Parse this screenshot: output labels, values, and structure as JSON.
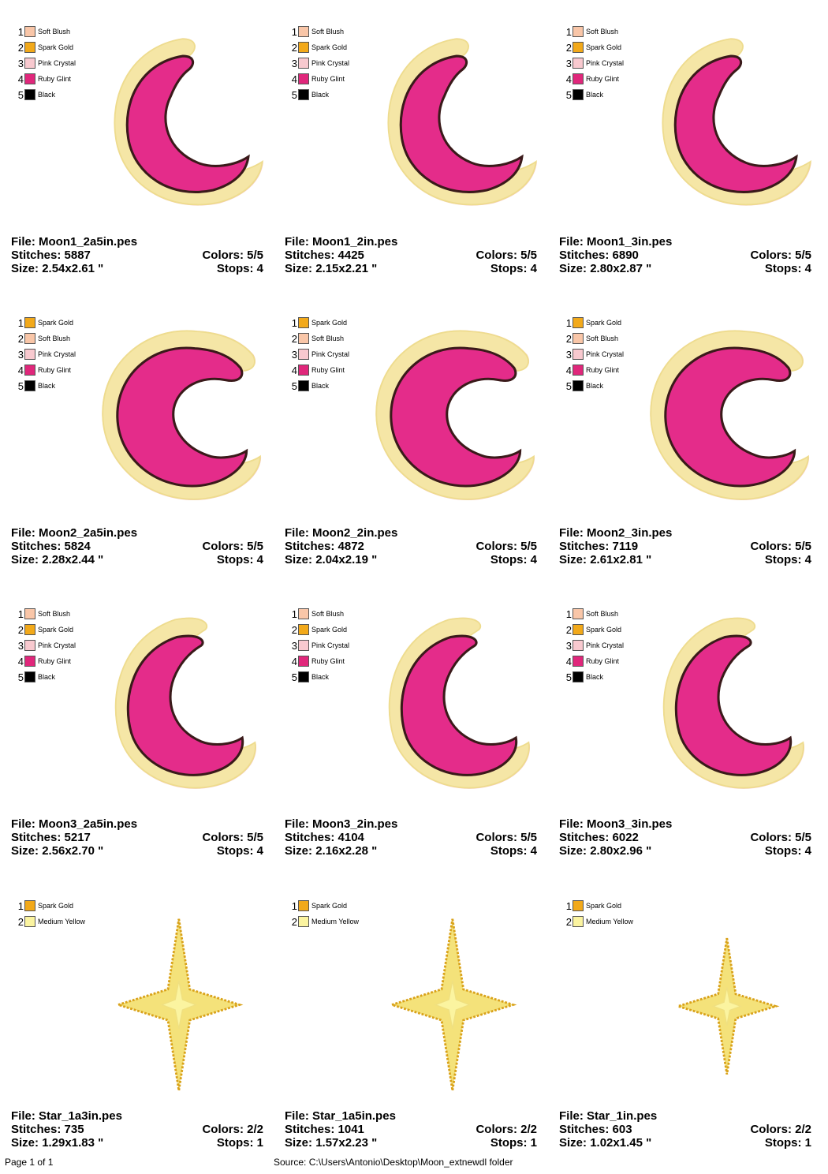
{
  "colors": {
    "soft_blush": "#F9C6A8",
    "spark_gold": "#F2A91A",
    "pink_crystal": "#F8C9CF",
    "ruby_glint": "#E0277B",
    "black": "#000000",
    "medium_yellow": "#FBF4A0",
    "fill_pink": "#E42C8A",
    "outline": "#3A1A1A",
    "border_cream": "#F5E6A6",
    "star_fill": "#F4E27A",
    "star_edge": "#D9A21A"
  },
  "labels": {
    "file": "File:",
    "stitches": "Stitches:",
    "size": "Size:",
    "colors": "Colors:",
    "stops": "Stops:"
  },
  "designs": [
    {
      "file": "Moon1_2a5in.pes",
      "stitches": "5887",
      "size": "2.54x2.61 \"",
      "colors": "5/5",
      "stops": "4",
      "shape": "moon1",
      "palette": [
        {
          "n": "1",
          "name": "Soft Blush",
          "color": "#F9C6A8"
        },
        {
          "n": "2",
          "name": "Spark Gold",
          "color": "#F2A91A"
        },
        {
          "n": "3",
          "name": "Pink Crystal",
          "color": "#F8C9CF"
        },
        {
          "n": "4",
          "name": "Ruby Glint",
          "color": "#E0277B"
        },
        {
          "n": "5",
          "name": "Black",
          "color": "#000000"
        }
      ]
    },
    {
      "file": "Moon1_2in.pes",
      "stitches": "4425",
      "size": "2.15x2.21 \"",
      "colors": "5/5",
      "stops": "4",
      "shape": "moon1",
      "palette": [
        {
          "n": "1",
          "name": "Soft Blush",
          "color": "#F9C6A8"
        },
        {
          "n": "2",
          "name": "Spark Gold",
          "color": "#F2A91A"
        },
        {
          "n": "3",
          "name": "Pink Crystal",
          "color": "#F8C9CF"
        },
        {
          "n": "4",
          "name": "Ruby Glint",
          "color": "#E0277B"
        },
        {
          "n": "5",
          "name": "Black",
          "color": "#000000"
        }
      ]
    },
    {
      "file": "Moon1_3in.pes",
      "stitches": "6890",
      "size": "2.80x2.87 \"",
      "colors": "5/5",
      "stops": "4",
      "shape": "moon1",
      "palette": [
        {
          "n": "1",
          "name": "Soft Blush",
          "color": "#F9C6A8"
        },
        {
          "n": "2",
          "name": "Spark Gold",
          "color": "#F2A91A"
        },
        {
          "n": "3",
          "name": "Pink Crystal",
          "color": "#F8C9CF"
        },
        {
          "n": "4",
          "name": "Ruby Glint",
          "color": "#E0277B"
        },
        {
          "n": "5",
          "name": "Black",
          "color": "#000000"
        }
      ]
    },
    {
      "file": "Moon2_2a5in.pes",
      "stitches": "5824",
      "size": "2.28x2.44 \"",
      "colors": "5/5",
      "stops": "4",
      "shape": "moon2",
      "palette": [
        {
          "n": "1",
          "name": "Spark Gold",
          "color": "#F2A91A"
        },
        {
          "n": "2",
          "name": "Soft Blush",
          "color": "#F9C6A8"
        },
        {
          "n": "3",
          "name": "Pink Crystal",
          "color": "#F8C9CF"
        },
        {
          "n": "4",
          "name": "Ruby Glint",
          "color": "#E0277B"
        },
        {
          "n": "5",
          "name": "Black",
          "color": "#000000"
        }
      ]
    },
    {
      "file": "Moon2_2in.pes",
      "stitches": "4872",
      "size": "2.04x2.19 \"",
      "colors": "5/5",
      "stops": "4",
      "shape": "moon2",
      "palette": [
        {
          "n": "1",
          "name": "Spark Gold",
          "color": "#F2A91A"
        },
        {
          "n": "2",
          "name": "Soft Blush",
          "color": "#F9C6A8"
        },
        {
          "n": "3",
          "name": "Pink Crystal",
          "color": "#F8C9CF"
        },
        {
          "n": "4",
          "name": "Ruby Glint",
          "color": "#E0277B"
        },
        {
          "n": "5",
          "name": "Black",
          "color": "#000000"
        }
      ]
    },
    {
      "file": "Moon2_3in.pes",
      "stitches": "7119",
      "size": "2.61x2.81 \"",
      "colors": "5/5",
      "stops": "4",
      "shape": "moon2",
      "palette": [
        {
          "n": "1",
          "name": "Spark Gold",
          "color": "#F2A91A"
        },
        {
          "n": "2",
          "name": "Soft Blush",
          "color": "#F9C6A8"
        },
        {
          "n": "3",
          "name": "Pink Crystal",
          "color": "#F8C9CF"
        },
        {
          "n": "4",
          "name": "Ruby Glint",
          "color": "#E0277B"
        },
        {
          "n": "5",
          "name": "Black",
          "color": "#000000"
        }
      ]
    },
    {
      "file": "Moon3_2a5in.pes",
      "stitches": "5217",
      "size": "2.56x2.70 \"",
      "colors": "5/5",
      "stops": "4",
      "shape": "moon3",
      "palette": [
        {
          "n": "1",
          "name": "Soft Blush",
          "color": "#F9C6A8"
        },
        {
          "n": "2",
          "name": "Spark Gold",
          "color": "#F2A91A"
        },
        {
          "n": "3",
          "name": "Pink Crystal",
          "color": "#F8C9CF"
        },
        {
          "n": "4",
          "name": "Ruby Glint",
          "color": "#E0277B"
        },
        {
          "n": "5",
          "name": "Black",
          "color": "#000000"
        }
      ]
    },
    {
      "file": "Moon3_2in.pes",
      "stitches": "4104",
      "size": "2.16x2.28 \"",
      "colors": "5/5",
      "stops": "4",
      "shape": "moon3",
      "palette": [
        {
          "n": "1",
          "name": "Soft Blush",
          "color": "#F9C6A8"
        },
        {
          "n": "2",
          "name": "Spark Gold",
          "color": "#F2A91A"
        },
        {
          "n": "3",
          "name": "Pink Crystal",
          "color": "#F8C9CF"
        },
        {
          "n": "4",
          "name": "Ruby Glint",
          "color": "#E0277B"
        },
        {
          "n": "5",
          "name": "Black",
          "color": "#000000"
        }
      ]
    },
    {
      "file": "Moon3_3in.pes",
      "stitches": "6022",
      "size": "2.80x2.96 \"",
      "colors": "5/5",
      "stops": "4",
      "shape": "moon3",
      "palette": [
        {
          "n": "1",
          "name": "Soft Blush",
          "color": "#F9C6A8"
        },
        {
          "n": "2",
          "name": "Spark Gold",
          "color": "#F2A91A"
        },
        {
          "n": "3",
          "name": "Pink Crystal",
          "color": "#F8C9CF"
        },
        {
          "n": "4",
          "name": "Ruby Glint",
          "color": "#E0277B"
        },
        {
          "n": "5",
          "name": "Black",
          "color": "#000000"
        }
      ]
    },
    {
      "file": "Star_1a3in.pes",
      "stitches": "735",
      "size": "1.29x1.83 \"",
      "colors": "2/2",
      "stops": "1",
      "shape": "star-lg",
      "palette": [
        {
          "n": "1",
          "name": "Spark Gold",
          "color": "#F2A91A"
        },
        {
          "n": "2",
          "name": "Medium Yellow",
          "color": "#FBF4A0"
        }
      ]
    },
    {
      "file": "Star_1a5in.pes",
      "stitches": "1041",
      "size": "1.57x2.23 \"",
      "colors": "2/2",
      "stops": "1",
      "shape": "star-lg",
      "palette": [
        {
          "n": "1",
          "name": "Spark Gold",
          "color": "#F2A91A"
        },
        {
          "n": "2",
          "name": "Medium Yellow",
          "color": "#FBF4A0"
        }
      ]
    },
    {
      "file": "Star_1in.pes",
      "stitches": "603",
      "size": "1.02x1.45 \"",
      "colors": "2/2",
      "stops": "1",
      "shape": "star-sm",
      "palette": [
        {
          "n": "1",
          "name": "Spark Gold",
          "color": "#F2A91A"
        },
        {
          "n": "2",
          "name": "Medium Yellow",
          "color": "#FBF4A0"
        }
      ]
    }
  ],
  "footer": {
    "page": "Page 1 of 1",
    "source": "Source:  C:\\Users\\Antonio\\Desktop\\Moon_extnewdl folder"
  }
}
